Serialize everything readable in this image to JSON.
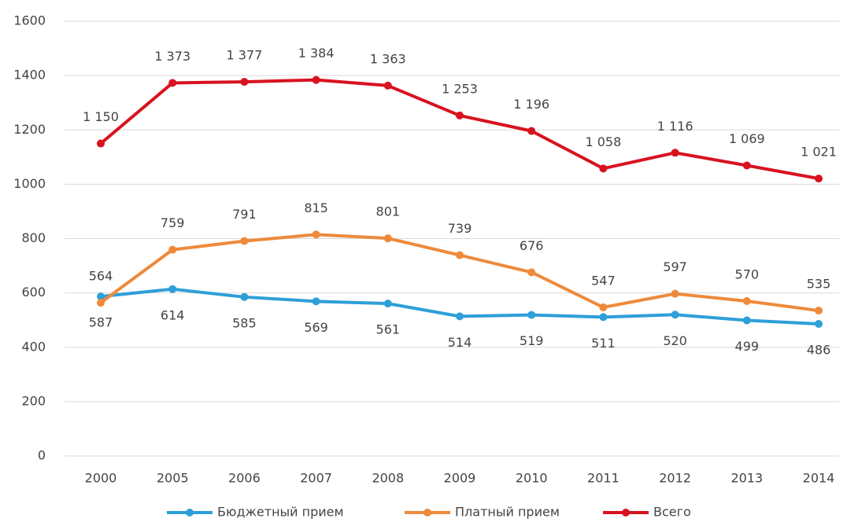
{
  "chart_data": {
    "type": "line",
    "categories": [
      "2000",
      "2005",
      "2006",
      "2007",
      "2008",
      "2009",
      "2010",
      "2011",
      "2012",
      "2013",
      "2014"
    ],
    "series": [
      {
        "name": "Бюджетный прием",
        "color": "#2e9fd8",
        "values": [
          587,
          614,
          585,
          569,
          561,
          514,
          519,
          511,
          520,
          499,
          486
        ]
      },
      {
        "name": "Платный прием",
        "color": "#ee8a3b",
        "values": [
          564,
          759,
          791,
          815,
          801,
          739,
          676,
          547,
          597,
          570,
          535
        ]
      },
      {
        "name": "Всего",
        "color": "#d8121f",
        "values": [
          1150,
          1373,
          1377,
          1384,
          1363,
          1253,
          1196,
          1058,
          1116,
          1069,
          1021
        ],
        "value_labels": [
          "1 150",
          "1 373",
          "1 377",
          "1 384",
          "1 363",
          "1 253",
          "1 196",
          "1 058",
          "1 116",
          "1 069",
          "1 021"
        ]
      }
    ],
    "ylim": [
      0,
      1600
    ],
    "yticks": [
      0,
      200,
      400,
      600,
      800,
      1000,
      1200,
      1400,
      1600
    ],
    "grid": true,
    "legend": "bottom"
  }
}
